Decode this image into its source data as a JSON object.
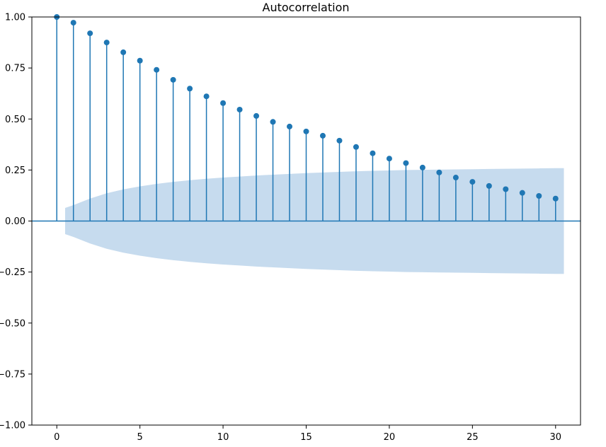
{
  "chart_data": {
    "type": "stem",
    "title": "Autocorrelation",
    "xlabel": "",
    "ylabel": "",
    "xlim": [
      -1.5,
      31.5
    ],
    "ylim": [
      -1.0,
      1.0
    ],
    "xticks": [
      0,
      5,
      10,
      15,
      20,
      25,
      30
    ],
    "yticks": [
      -1.0,
      -0.75,
      -0.5,
      -0.25,
      0.0,
      0.25,
      0.5,
      0.75,
      1.0
    ],
    "xtick_labels": [
      "0",
      "5",
      "10",
      "15",
      "20",
      "25",
      "30"
    ],
    "ytick_labels": [
      "−1.00",
      "−0.75",
      "−0.50",
      "−0.25",
      "0.00",
      "0.25",
      "0.50",
      "0.75",
      "1.00"
    ],
    "grid": false,
    "legend": "none",
    "series": [
      {
        "x": [
          0,
          1,
          2,
          3,
          4,
          5,
          6,
          7,
          8,
          9,
          10,
          11,
          12,
          13,
          14,
          15,
          16,
          17,
          18,
          19,
          20,
          21,
          22,
          23,
          24,
          25,
          26,
          27,
          28,
          29,
          30
        ],
        "values": [
          1.0,
          0.972,
          0.92,
          0.875,
          0.827,
          0.786,
          0.741,
          0.692,
          0.649,
          0.611,
          0.578,
          0.546,
          0.515,
          0.486,
          0.463,
          0.439,
          0.418,
          0.394,
          0.363,
          0.332,
          0.306,
          0.284,
          0.262,
          0.238,
          0.213,
          0.192,
          0.172,
          0.156,
          0.138,
          0.123,
          0.11
        ]
      }
    ],
    "confidence_band": {
      "x": [
        0.5,
        1,
        2,
        3,
        4,
        5,
        6,
        7,
        8,
        9,
        10,
        11,
        12,
        13,
        14,
        15,
        16,
        17,
        18,
        19,
        20,
        21,
        22,
        23,
        24,
        25,
        26,
        27,
        28,
        29,
        30,
        30.5
      ],
      "upper": [
        0.064,
        0.078,
        0.11,
        0.136,
        0.155,
        0.17,
        0.182,
        0.192,
        0.2,
        0.207,
        0.213,
        0.218,
        0.223,
        0.227,
        0.231,
        0.235,
        0.238,
        0.241,
        0.244,
        0.246,
        0.248,
        0.25,
        0.251,
        0.252,
        0.253,
        0.254,
        0.255,
        0.256,
        0.257,
        0.258,
        0.259,
        0.259
      ]
    },
    "colors": {
      "marker": "#1f77b4",
      "band": "#c6dbee",
      "zero_line": "#1f77b4",
      "axes": "#000000"
    }
  }
}
